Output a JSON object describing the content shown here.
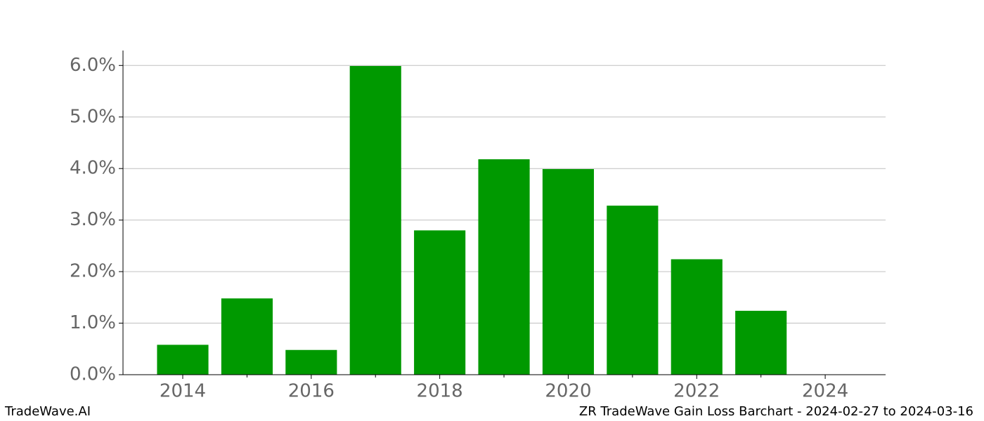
{
  "chart_data": {
    "type": "bar",
    "x": [
      2014,
      2015,
      2016,
      2017,
      2018,
      2019,
      2020,
      2021,
      2022,
      2023
    ],
    "values": [
      0.58,
      1.48,
      0.48,
      5.99,
      2.8,
      4.18,
      3.99,
      3.28,
      2.24,
      1.24
    ],
    "color": "#009900",
    "xlim": [
      2013.07,
      2024.94
    ],
    "xticks": [
      2014,
      2016,
      2018,
      2020,
      2022,
      2024
    ],
    "xminorticks": [
      2015,
      2017,
      2019,
      2021,
      2023
    ],
    "ylim": [
      0,
      6.29
    ],
    "yticks": [
      {
        "value": 0,
        "label": "0.0%"
      },
      {
        "value": 1,
        "label": "1.0%"
      },
      {
        "value": 2,
        "label": "2.0%"
      },
      {
        "value": 3,
        "label": "3.0%"
      },
      {
        "value": 4,
        "label": "4.0%"
      },
      {
        "value": 5,
        "label": "5.0%"
      },
      {
        "value": 6,
        "label": "6.0%"
      }
    ],
    "grid": true,
    "footer_left": "TradeWave.AI",
    "footer_right": "ZR TradeWave Gain Loss Barchart - 2024-02-27 to 2024-03-16"
  }
}
